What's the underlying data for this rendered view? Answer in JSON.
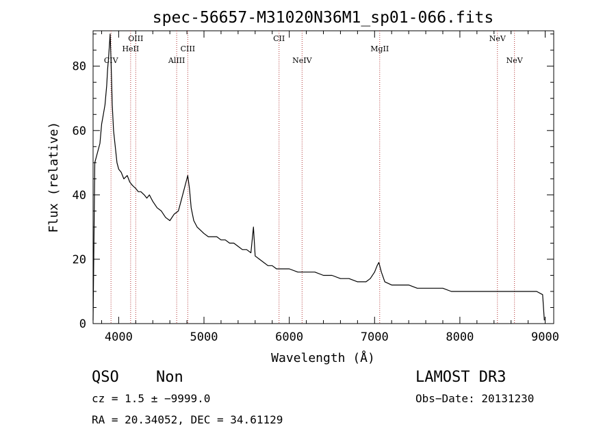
{
  "chart_data": {
    "type": "line",
    "title": "spec-56657-M31020N36M1_sp01-066.fits",
    "xlabel": "Wavelength (Å)",
    "ylabel": "Flux (relative)",
    "xlim": [
      3700,
      9100
    ],
    "ylim": [
      0,
      91
    ],
    "x_ticks": [
      4000,
      5000,
      6000,
      7000,
      8000,
      9000
    ],
    "y_ticks": [
      0,
      20,
      40,
      60,
      80
    ],
    "grid": false,
    "series": [
      {
        "color": "#000000",
        "x": [
          3700,
          3720,
          3740,
          3760,
          3780,
          3800,
          3820,
          3840,
          3860,
          3870,
          3880,
          3890,
          3900,
          3910,
          3925,
          3940,
          3960,
          3980,
          4000,
          4030,
          4060,
          4100,
          4130,
          4160,
          4200,
          4230,
          4260,
          4300,
          4330,
          4360,
          4380,
          4400,
          4450,
          4500,
          4550,
          4600,
          4650,
          4700,
          4730,
          4760,
          4790,
          4810,
          4830,
          4850,
          4880,
          4920,
          4960,
          5000,
          5050,
          5100,
          5150,
          5200,
          5250,
          5300,
          5350,
          5400,
          5450,
          5500,
          5550,
          5580,
          5600,
          5650,
          5700,
          5750,
          5800,
          5850,
          5900,
          5950,
          6000,
          6100,
          6200,
          6300,
          6400,
          6500,
          6600,
          6700,
          6800,
          6850,
          6900,
          6950,
          7000,
          7030,
          7050,
          7080,
          7120,
          7200,
          7300,
          7400,
          7500,
          7600,
          7700,
          7800,
          7900,
          8000,
          8100,
          8200,
          8300,
          8400,
          8500,
          8600,
          8700,
          8800,
          8900,
          8970,
          8990
        ],
        "y": [
          1,
          50,
          52,
          54,
          56,
          62,
          65,
          68,
          74,
          79,
          82,
          86,
          90,
          82,
          68,
          60,
          55,
          50,
          48,
          47,
          45,
          46,
          44,
          43,
          42,
          41,
          41,
          40,
          39,
          40,
          39,
          38,
          36,
          35,
          33,
          32,
          34,
          35,
          38,
          41,
          44,
          46,
          42,
          36,
          32,
          30,
          29,
          28,
          27,
          27,
          27,
          26,
          26,
          25,
          25,
          24,
          23,
          23,
          22,
          30,
          21,
          20,
          19,
          18,
          18,
          17,
          17,
          17,
          17,
          16,
          16,
          16,
          15,
          15,
          14,
          14,
          13,
          13,
          13,
          14,
          16,
          18,
          19,
          16,
          13,
          12,
          12,
          12,
          11,
          11,
          11,
          11,
          10,
          10,
          10,
          10,
          10,
          10,
          10,
          10,
          10,
          10,
          10,
          9,
          1
        ]
      }
    ],
    "annotations": [
      {
        "text": "CIV",
        "x": 3910
      },
      {
        "text": "HeII",
        "x": 4140
      },
      {
        "text": "OIII",
        "x": 4200
      },
      {
        "text": "AlIII",
        "x": 4680
      },
      {
        "text": "CIII",
        "x": 4810
      },
      {
        "text": "CII",
        "x": 5880
      },
      {
        "text": "NeIV",
        "x": 6150
      },
      {
        "text": "MgII",
        "x": 7060
      },
      {
        "text": "NeV",
        "x": 8440
      },
      {
        "text": "NeV",
        "x": 8640
      }
    ]
  },
  "footer": {
    "class_label": "QSO",
    "subclass_label": "Non",
    "survey": "LAMOST DR3",
    "cz": "cz = 1.5 ± −9999.0",
    "obs_date": "Obs−Date: 20131230",
    "coords": "RA =  20.34052, DEC =  34.61129"
  }
}
